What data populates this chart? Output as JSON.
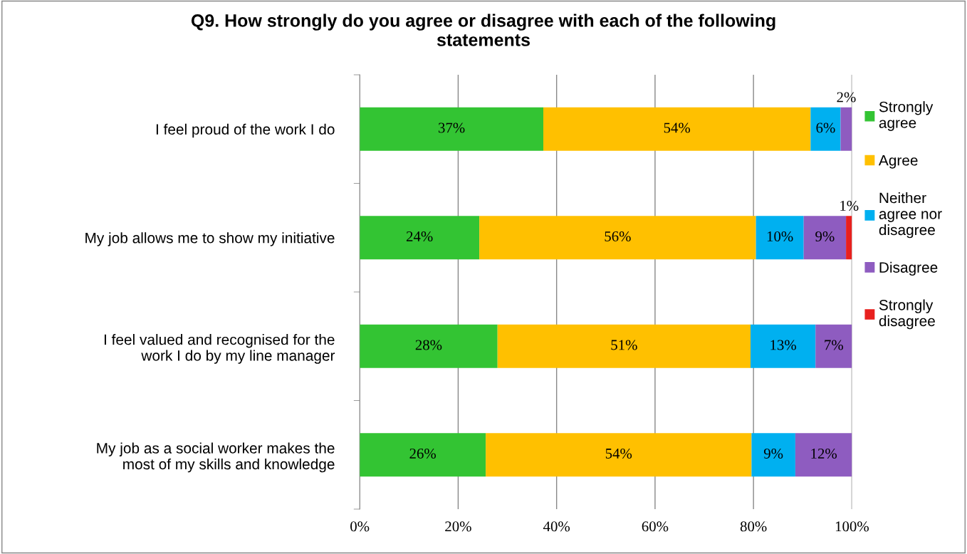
{
  "chart_data": {
    "type": "bar",
    "orientation": "horizontal",
    "stacked": true,
    "title": "Q9. How strongly do you agree or disagree with each of the following\nstatements",
    "categories": [
      "I feel proud of the work I do",
      "My job allows me to show my initiative",
      "I feel valued and recognised for the\nwork I do by my line manager",
      "My job as a social worker makes the\nmost of my skills and knowledge"
    ],
    "series": [
      {
        "name": "Strongly\nagree",
        "color": "#33c433",
        "values": [
          37.3,
          24.3,
          28.0,
          25.6
        ],
        "value_labels": [
          "37%",
          "24%",
          "28%",
          "26%"
        ]
      },
      {
        "name": "Agree",
        "color": "#ffc000",
        "values": [
          54.3,
          56.2,
          51.4,
          54.0
        ],
        "value_labels": [
          "54%",
          "56%",
          "51%",
          "54%"
        ]
      },
      {
        "name": "Neither\nagree nor\ndisagree",
        "color": "#00b0f0",
        "values": [
          6.1,
          9.7,
          13.2,
          8.9
        ],
        "value_labels": [
          "6%",
          "10%",
          "13%",
          "9%"
        ]
      },
      {
        "name": "Disagree",
        "color": "#8e5cc0",
        "values": [
          2.3,
          8.6,
          7.4,
          11.5
        ],
        "value_labels": [
          "2%",
          "9%",
          "7%",
          "12%"
        ]
      },
      {
        "name": "Strongly\ndisagree",
        "color": "#e8201e",
        "values": [
          0,
          1.2,
          0,
          0
        ],
        "value_labels": [
          null,
          "1%",
          null,
          null
        ]
      }
    ],
    "xlim": [
      0,
      100
    ],
    "xticks": [
      {
        "value": 0,
        "label": "0%"
      },
      {
        "value": 20,
        "label": "20%"
      },
      {
        "value": 40,
        "label": "40%"
      },
      {
        "value": 60,
        "label": "60%"
      },
      {
        "value": 80,
        "label": "80%"
      },
      {
        "value": 100,
        "label": "100%"
      }
    ],
    "grid": "x",
    "legend": "top right"
  }
}
